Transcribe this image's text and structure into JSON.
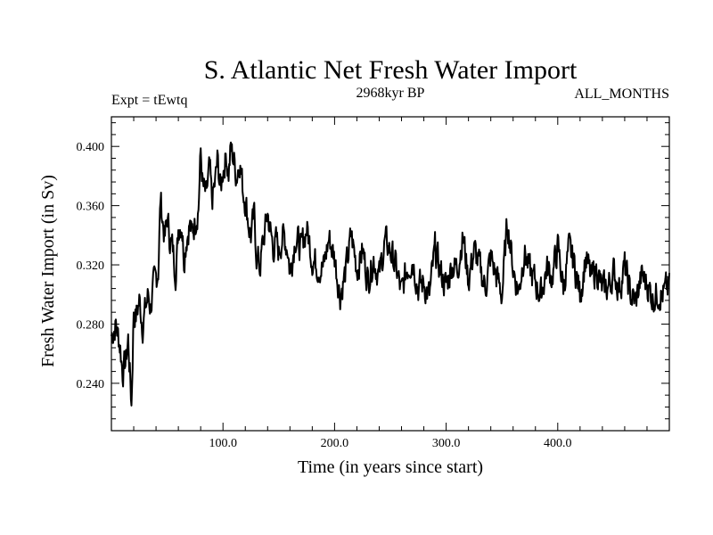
{
  "chart_data": {
    "type": "line",
    "title": "S. Atlantic Net Fresh Water Import",
    "subtitle_left": "Expt = tEwtq",
    "subtitle_center": "2968kyr BP",
    "subtitle_right": "ALL_MONTHS",
    "xlabel": "Time (in years since start)",
    "ylabel": "Fresh Water Import (in Sv)",
    "xlim": [
      0,
      500
    ],
    "ylim": [
      0.208,
      0.42
    ],
    "x_ticks_major": [
      100,
      200,
      300,
      400
    ],
    "x_tick_labels": [
      "100.0",
      "200.0",
      "300.0",
      "400.0"
    ],
    "y_ticks_major": [
      0.24,
      0.28,
      0.32,
      0.36,
      0.4
    ],
    "y_tick_labels": [
      "0.240",
      "0.280",
      "0.320",
      "0.360",
      "0.400"
    ],
    "x_minor_step": 20,
    "y_minor_step": 0.008,
    "grid": false,
    "series": [
      {
        "name": "Fresh Water Import",
        "color": "#000000",
        "anchors_x": [
          0,
          4,
          8,
          10,
          13,
          15,
          18,
          20,
          22,
          25,
          28,
          30,
          33,
          35,
          38,
          40,
          42,
          44,
          46,
          48,
          50,
          52,
          55,
          58,
          60,
          63,
          65,
          67,
          70,
          72,
          75,
          78,
          80,
          82,
          85,
          88,
          90,
          93,
          95,
          98,
          100,
          103,
          105,
          107,
          110,
          112,
          115,
          118,
          120,
          123,
          125,
          128,
          130,
          133,
          135,
          138,
          140,
          143,
          145,
          148,
          150,
          153,
          155,
          158,
          160,
          165,
          170,
          175,
          180,
          185,
          190,
          195,
          200,
          205,
          210,
          215,
          220,
          225,
          230,
          235,
          240,
          245,
          250,
          255,
          260,
          265,
          270,
          275,
          280,
          285,
          290,
          295,
          300,
          305,
          310,
          315,
          320,
          325,
          330,
          335,
          340,
          345,
          350,
          355,
          360,
          365,
          370,
          375,
          380,
          385,
          390,
          395,
          400,
          405,
          410,
          415,
          420,
          425,
          430,
          435,
          440,
          445,
          450,
          455,
          460,
          465,
          470,
          475,
          480,
          485,
          490,
          495,
          500
        ],
        "anchors_y": [
          0.272,
          0.28,
          0.265,
          0.248,
          0.255,
          0.27,
          0.226,
          0.29,
          0.285,
          0.296,
          0.28,
          0.288,
          0.3,
          0.292,
          0.305,
          0.31,
          0.318,
          0.365,
          0.35,
          0.338,
          0.352,
          0.34,
          0.33,
          0.315,
          0.345,
          0.35,
          0.325,
          0.338,
          0.348,
          0.34,
          0.35,
          0.36,
          0.395,
          0.372,
          0.365,
          0.385,
          0.362,
          0.375,
          0.39,
          0.37,
          0.385,
          0.395,
          0.382,
          0.398,
          0.39,
          0.38,
          0.392,
          0.37,
          0.365,
          0.348,
          0.34,
          0.352,
          0.328,
          0.318,
          0.33,
          0.345,
          0.355,
          0.34,
          0.332,
          0.335,
          0.328,
          0.34,
          0.338,
          0.332,
          0.315,
          0.34,
          0.33,
          0.345,
          0.325,
          0.32,
          0.318,
          0.338,
          0.325,
          0.3,
          0.315,
          0.34,
          0.318,
          0.33,
          0.31,
          0.325,
          0.312,
          0.335,
          0.33,
          0.318,
          0.3,
          0.318,
          0.325,
          0.305,
          0.308,
          0.298,
          0.33,
          0.315,
          0.305,
          0.32,
          0.318,
          0.34,
          0.31,
          0.33,
          0.318,
          0.305,
          0.325,
          0.312,
          0.3,
          0.35,
          0.318,
          0.302,
          0.33,
          0.315,
          0.308,
          0.3,
          0.318,
          0.312,
          0.332,
          0.305,
          0.33,
          0.32,
          0.3,
          0.325,
          0.31,
          0.318,
          0.302,
          0.305,
          0.315,
          0.305,
          0.318,
          0.3,
          0.295,
          0.312,
          0.308,
          0.298,
          0.302,
          0.3,
          0.305
        ],
        "sample_step": 0.5,
        "noise_amplitude": 0.017,
        "seed": 7
      }
    ]
  }
}
